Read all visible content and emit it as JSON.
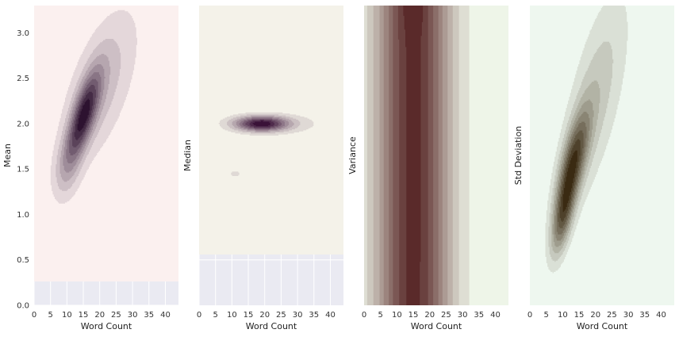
{
  "chart_data": [
    {
      "type": "kde-contour",
      "xlabel": "Word Count",
      "ylabel": "Mean",
      "xlim": [
        0,
        44
      ],
      "ylim": [
        0,
        3.3
      ],
      "xticks": [
        "0",
        "5",
        "10",
        "15",
        "20",
        "25",
        "30",
        "35",
        "40"
      ],
      "yticks": [
        "0.0",
        "0.5",
        "1.0",
        "1.5",
        "2.0",
        "2.5",
        "3.0"
      ],
      "grid": true,
      "palette": {
        "light": "#fbf0ef",
        "dark": "#2d1230"
      },
      "density_peaks": [
        {
          "x": 15,
          "y": 2.08,
          "sx": 3.5,
          "sy": 0.33,
          "rho": 0.72,
          "w": 1.0
        },
        {
          "x": 20,
          "y": 2.4,
          "sx": 8,
          "sy": 0.6,
          "rho": 0.6,
          "w": 0.35
        },
        {
          "x": 10,
          "y": 1.5,
          "sx": 3,
          "sy": 0.25,
          "rho": 0.3,
          "w": 0.25
        }
      ]
    },
    {
      "type": "kde-contour",
      "xlabel": "Word Count",
      "ylabel": "Median",
      "xlim": [
        0,
        44
      ],
      "ylim": [
        0,
        3.3
      ],
      "xticks": [
        "0",
        "5",
        "10",
        "15",
        "20",
        "25",
        "30",
        "35",
        "40"
      ],
      "yticks": [],
      "grid": true,
      "palette": {
        "light": "#f4f2e9",
        "dark": "#3a1238"
      },
      "density_peaks": [
        {
          "x": 19,
          "y": 2.0,
          "sx": 5.5,
          "sy": 0.055,
          "rho": 0,
          "w": 1.0
        },
        {
          "x": 24,
          "y": 2.0,
          "sx": 12,
          "sy": 0.09,
          "rho": 0,
          "w": 0.15
        },
        {
          "x": 11,
          "y": 1.45,
          "sx": 4,
          "sy": 0.08,
          "rho": 0,
          "w": 0.12
        },
        {
          "x": 11,
          "y": 0.95,
          "sx": 4.5,
          "sy": 0.12,
          "rho": 0,
          "w": 0.1
        }
      ]
    },
    {
      "type": "kde-contour",
      "xlabel": "Word Count",
      "ylabel": "Variance",
      "xlim": [
        0,
        44
      ],
      "ylim": [
        0,
        3.3
      ],
      "xticks": [
        "0",
        "5",
        "10",
        "15",
        "20",
        "25",
        "30",
        "35",
        "40"
      ],
      "yticks": [],
      "grid": true,
      "palette": {
        "light": "#eef5e8",
        "dark": "#5a2a2a"
      },
      "density_peaks": [
        {
          "x": 15,
          "y": 1.6,
          "sx": 8,
          "sy": 40,
          "rho": 0,
          "w": 1.0
        },
        {
          "x": 15,
          "y": 3.4,
          "sx": 2.5,
          "sy": 0.25,
          "rho": 0,
          "w": 0.08
        }
      ]
    },
    {
      "type": "kde-contour",
      "xlabel": "Word Count",
      "ylabel": "Std Deviation",
      "xlim": [
        0,
        44
      ],
      "ylim": [
        0,
        3.3
      ],
      "xticks": [
        "0",
        "5",
        "10",
        "15",
        "20",
        "25",
        "30",
        "35",
        "40"
      ],
      "yticks": [],
      "grid": true,
      "palette": {
        "light": "#eef7ef",
        "dark": "#3a2a12"
      },
      "density_peaks": [
        {
          "x": 13,
          "y": 1.55,
          "sx": 3.5,
          "sy": 0.4,
          "rho": 0.7,
          "w": 1.0
        },
        {
          "x": 10,
          "y": 0.95,
          "sx": 2.5,
          "sy": 0.3,
          "rho": 0.6,
          "w": 0.7
        },
        {
          "x": 20,
          "y": 2.3,
          "sx": 7,
          "sy": 0.8,
          "rho": 0.65,
          "w": 0.35
        }
      ]
    }
  ]
}
